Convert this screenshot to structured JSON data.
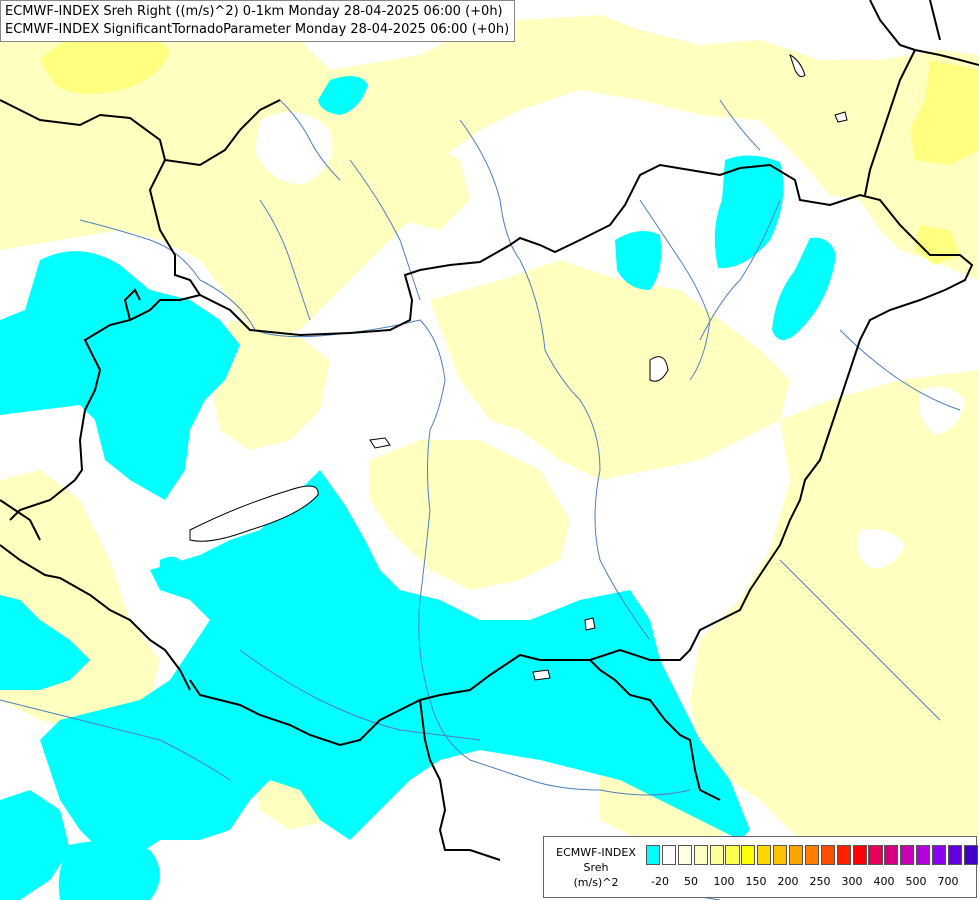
{
  "header": {
    "line1": "ECMWF-INDEX Sreh Right ((m/s)^2) 0-1km Monday 28-04-2025 06:00 (+0h)",
    "line2": "ECMWF-INDEX SignificantTornadoParameter Monday 28-04-2025 06:00 (+0h)"
  },
  "legend": {
    "title1": "ECMWF-INDEX",
    "title2": "Sreh",
    "title3": "(m/s)^2",
    "colors": [
      "#00ffff",
      "#ffffff",
      "#ffffe6",
      "#ffffbf",
      "#ffff99",
      "#ffff4d",
      "#ffff00",
      "#ffd700",
      "#ffc000",
      "#ffa500",
      "#ff8000",
      "#ff5000",
      "#ff2000",
      "#ff0000",
      "#e6005a",
      "#d40080",
      "#c800b4",
      "#b400dc",
      "#8c00f0",
      "#6400e6",
      "#3c00c8",
      "#140096"
    ],
    "ticks": [
      "-20",
      "50",
      "100",
      "150",
      "200",
      "250",
      "300",
      "400",
      "500",
      "700"
    ]
  },
  "map_colors": {
    "cyan": "#00ffff",
    "pale_yellow": "#ffffc0",
    "yellow": "#ffff80",
    "border": "#000000",
    "river": "#4f7fbf"
  }
}
